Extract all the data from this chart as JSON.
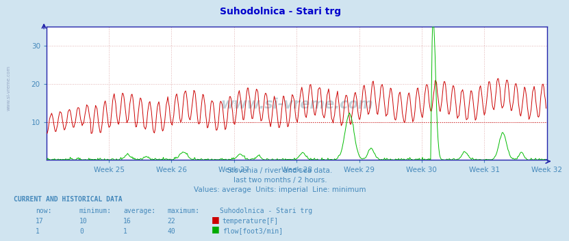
{
  "title": "Suhodolnica - Stari trg",
  "bg_color": "#d0e4f0",
  "plot_bg_color": "#ffffff",
  "grid_color": "#e0b0b0",
  "axis_color": "#2222aa",
  "text_color": "#4488bb",
  "title_color": "#0000cc",
  "ylim": [
    0,
    35
  ],
  "yticks": [
    10,
    20,
    30
  ],
  "week_labels": [
    "Week 25",
    "Week 26",
    "Week 27",
    "Week 28",
    "Week 29",
    "Week 30",
    "Week 31",
    "Week 32"
  ],
  "n_points": 672,
  "temp_color": "#cc0000",
  "flow_color": "#00bb00",
  "min_line_color": "#cc0000",
  "footer_line1": "Slovenia / river and sea data.",
  "footer_line2": "last two months / 2 hours.",
  "footer_line3": "Values: average  Units: imperial  Line: minimum",
  "table_header": "CURRENT AND HISTORICAL DATA",
  "col_now": "now:",
  "col_min": "minimum:",
  "col_avg": "average:",
  "col_max": "maximum:",
  "col_site": "Suhodolnica - Stari trg",
  "row1_vals": [
    17,
    10,
    16,
    22
  ],
  "row1_label": "temperature[F]",
  "row1_color": "#cc0000",
  "row2_vals": [
    1,
    0,
    1,
    40
  ],
  "row2_label": "flow[foot3/min]",
  "row2_color": "#00aa00"
}
